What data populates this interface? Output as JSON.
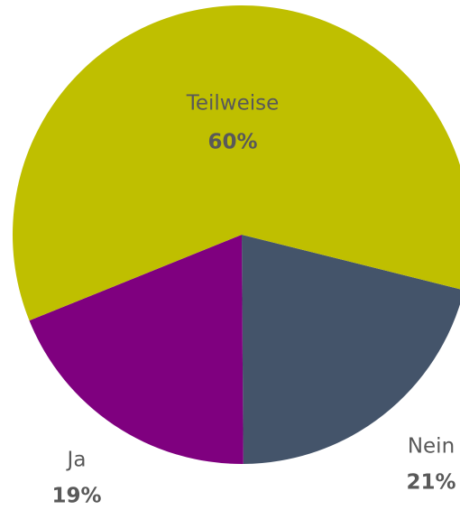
{
  "chart_data": {
    "type": "pie",
    "categories": [
      "Nein",
      "Ja",
      "Teilweise"
    ],
    "values": [
      21,
      19,
      60
    ],
    "value_labels": [
      "21%",
      "19%",
      "60%"
    ],
    "colors": [
      "#44546a",
      "#7f007f",
      "#bfbf00"
    ]
  }
}
